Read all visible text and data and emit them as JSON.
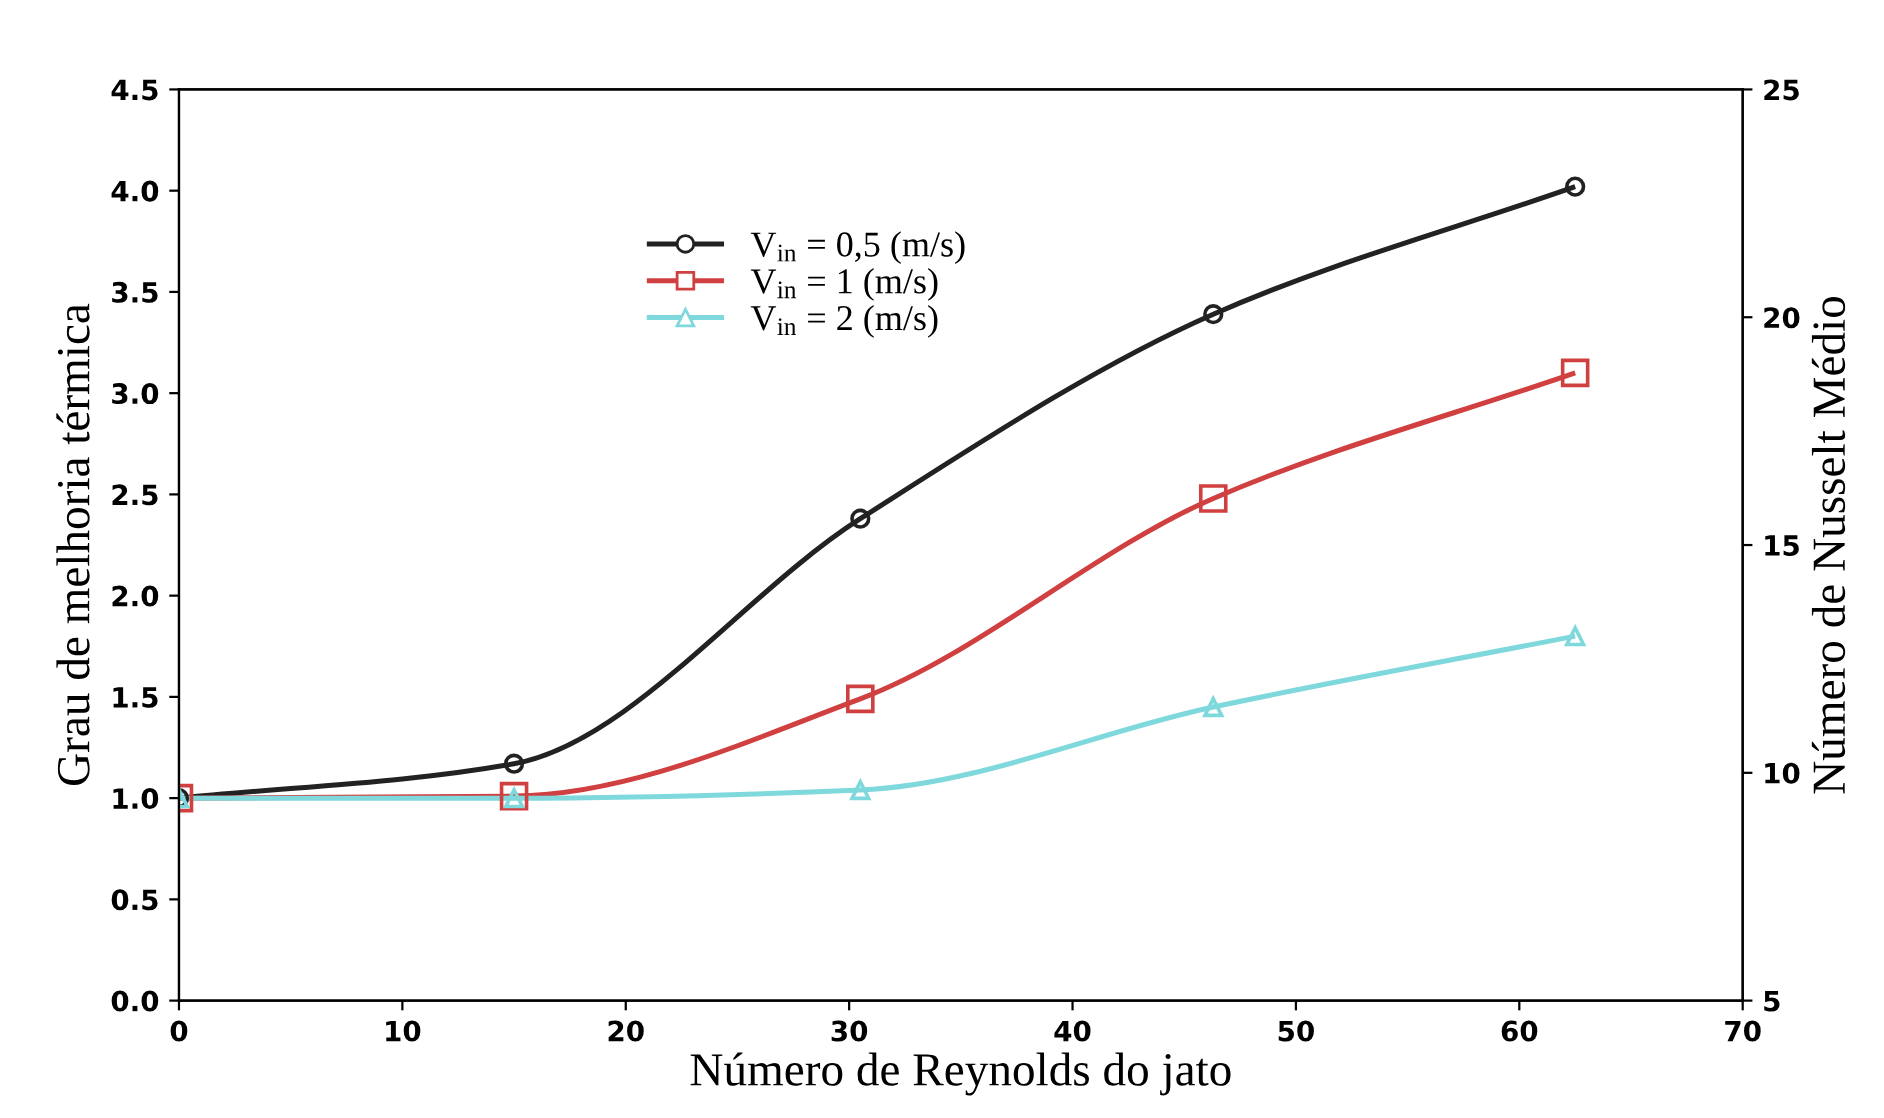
{
  "chart_data": {
    "type": "line",
    "xlabel": "Número de Reynolds do jato",
    "ylabel": "Grau de melhoria térmica",
    "y2label": "Número de Nusselt Médio",
    "x": [
      0,
      15,
      30.5,
      46.3,
      62.5
    ],
    "series": [
      {
        "name": "V$_{in}$ = 0,5 (m/s)",
        "color": "#222222",
        "marker": "circle",
        "values": [
          1.0,
          1.17,
          2.38,
          3.39,
          4.02
        ]
      },
      {
        "name": "V$_{in}$ = 1 (m/s)",
        "color": "#d04040",
        "marker": "square",
        "values": [
          1.0,
          1.01,
          1.49,
          2.48,
          3.1
        ]
      },
      {
        "name": "V$_{in}$ = 2 (m/s)",
        "color": "#7fd8dc",
        "marker": "triangle",
        "values": [
          1.0,
          1.0,
          1.04,
          1.45,
          1.8
        ]
      }
    ],
    "xlim": [
      0,
      70
    ],
    "xticks": [
      0,
      10,
      20,
      30,
      40,
      50,
      60,
      70
    ],
    "ylim": [
      0,
      4.5
    ],
    "yticks": [
      {
        "value": 0,
        "label": "0.0"
      },
      {
        "value": 0.5,
        "label": "0.5"
      },
      {
        "value": 1,
        "label": "1.0"
      },
      {
        "value": 1.5,
        "label": "1.5"
      },
      {
        "value": 2,
        "label": "2.0"
      },
      {
        "value": 2.5,
        "label": "2.5"
      },
      {
        "value": 3,
        "label": "3.0"
      },
      {
        "value": 3.5,
        "label": "3.5"
      },
      {
        "value": 4,
        "label": "4.0"
      },
      {
        "value": 4.5,
        "label": "4.5"
      }
    ],
    "y2lim": [
      5,
      25
    ],
    "y2ticks": [
      5,
      10,
      15,
      20,
      25
    ],
    "legend": "top left",
    "grid": false
  }
}
